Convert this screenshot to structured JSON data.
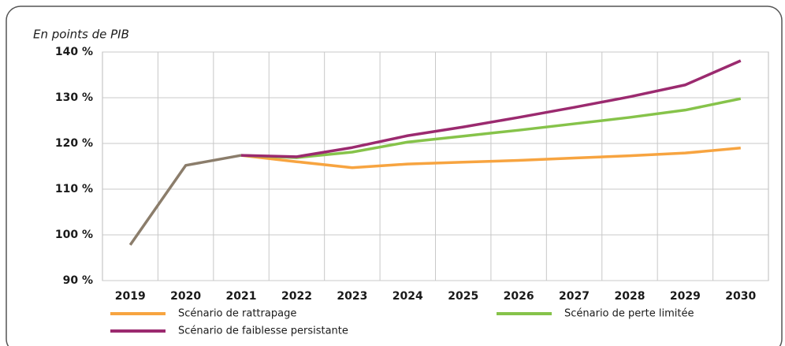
{
  "chart_data": {
    "type": "line",
    "y_axis_label": "En points de PIB",
    "categories": [
      "2019",
      "2020",
      "2021",
      "2022",
      "2023",
      "2024",
      "2025",
      "2026",
      "2027",
      "2028",
      "2029",
      "2030"
    ],
    "series": [
      {
        "color": "#8b7d6b",
        "values": [
          97.8,
          115.2,
          117.4,
          null,
          null,
          null,
          null,
          null,
          null,
          null,
          null,
          null
        ]
      },
      {
        "name": "Scénario de rattrapage",
        "color": "#f7a440",
        "values": [
          null,
          null,
          117.4,
          116.0,
          114.7,
          115.5,
          115.9,
          116.3,
          116.8,
          117.3,
          117.9,
          119.0
        ]
      },
      {
        "name": "Scénario de perte limitée",
        "color": "#86c34a",
        "values": [
          null,
          null,
          117.4,
          116.9,
          118.1,
          120.3,
          121.6,
          122.9,
          124.3,
          125.7,
          127.3,
          129.8
        ]
      },
      {
        "name": "Scénario de faiblesse persistante",
        "color": "#9b2a6f",
        "values": [
          null,
          null,
          117.4,
          117.1,
          119.1,
          121.7,
          123.6,
          125.7,
          127.9,
          130.2,
          132.8,
          138.1
        ]
      }
    ],
    "ylim": [
      90,
      140
    ],
    "yticks": [
      {
        "value": 90,
        "label": "90 %"
      },
      {
        "value": 100,
        "label": "100 %"
      },
      {
        "value": 110,
        "label": "110 %"
      },
      {
        "value": 120,
        "label": "120 %"
      },
      {
        "value": 130,
        "label": "130 %"
      },
      {
        "value": 140,
        "label": "140 %"
      }
    ],
    "grid": true
  }
}
